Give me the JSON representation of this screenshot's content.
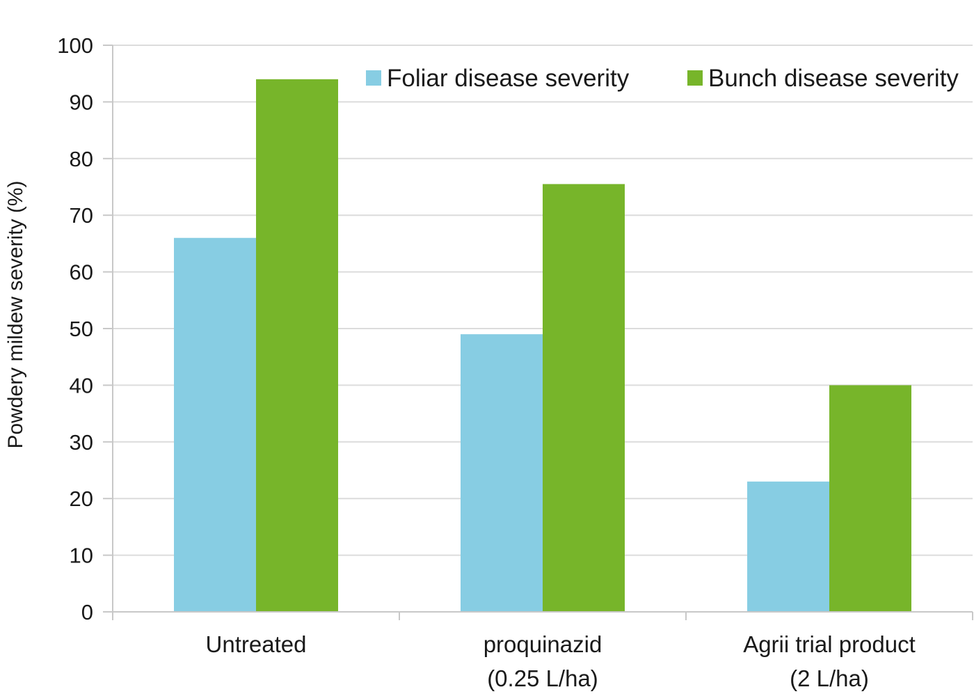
{
  "chart_data": {
    "type": "bar",
    "categories": [
      [
        "Untreated"
      ],
      [
        "proquinazid",
        "(0.25 L/ha)"
      ],
      [
        "Agrii trial product",
        "(2 L/ha)"
      ]
    ],
    "series": [
      {
        "name": "Foliar disease severity",
        "color": "#87CDE3",
        "values": [
          66,
          49,
          23
        ]
      },
      {
        "name": "Bunch disease severity",
        "color": "#77B52A",
        "values": [
          94,
          75.5,
          40
        ]
      }
    ],
    "ylabel": "Powdery mildew severity (%)",
    "ylim": [
      0,
      100
    ],
    "yticks": [
      0,
      10,
      20,
      30,
      40,
      50,
      60,
      70,
      80,
      90,
      100
    ],
    "grid": true,
    "legend_position": "top-right"
  }
}
